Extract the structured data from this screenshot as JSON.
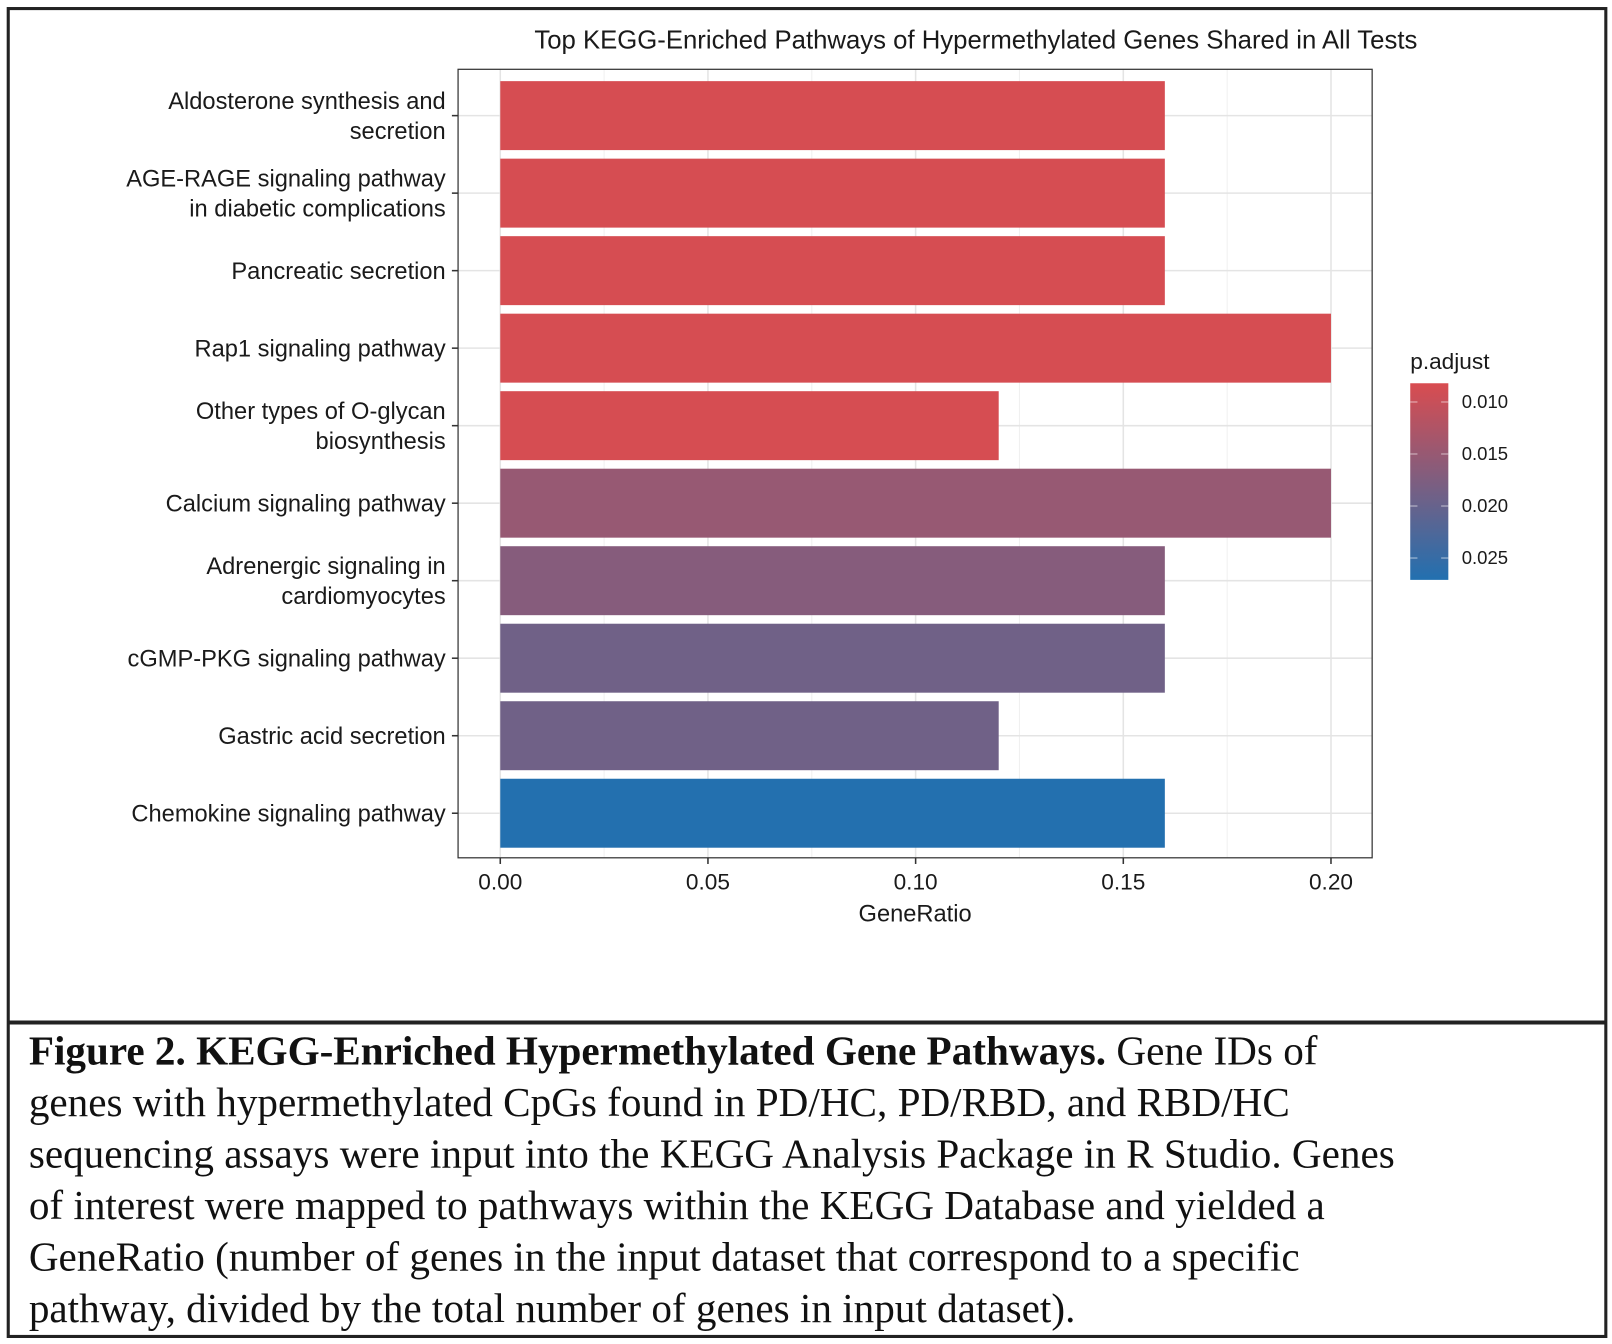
{
  "chart_data": {
    "type": "bar",
    "orientation": "horizontal",
    "title": "Top KEGG-Enriched Pathways of Hypermethylated Genes Shared in All Tests",
    "xlabel": "GeneRatio",
    "ylabel": "",
    "xlim": [
      0,
      0.21
    ],
    "xticks": [
      "0.00",
      "0.05",
      "0.10",
      "0.15",
      "0.20"
    ],
    "xtick_values": [
      0,
      0.05,
      0.1,
      0.15,
      0.2
    ],
    "grid": true,
    "categories": [
      [
        "Aldosterone synthesis and",
        "secretion"
      ],
      [
        "AGE-RAGE signaling pathway",
        "in diabetic complications"
      ],
      [
        "Pancreatic secretion"
      ],
      [
        "Rap1 signaling pathway"
      ],
      [
        "Other types of O-glycan",
        "biosynthesis"
      ],
      [
        "Calcium signaling pathway"
      ],
      [
        "Adrenergic signaling in",
        "cardiomyocytes"
      ],
      [
        "cGMP-PKG signaling pathway"
      ],
      [
        "Gastric acid secretion"
      ],
      [
        "Chemokine signaling pathway"
      ]
    ],
    "values": [
      0.16,
      0.16,
      0.16,
      0.2,
      0.12,
      0.2,
      0.16,
      0.16,
      0.12,
      0.16
    ],
    "p_adjust": [
      0.0085,
      0.0085,
      0.0085,
      0.0085,
      0.0085,
      0.015,
      0.0168,
      0.019,
      0.019,
      0.027
    ],
    "legend": {
      "title": "p.adjust",
      "placement": "right",
      "labels": [
        "0.010",
        "0.015",
        "0.020",
        "0.025"
      ],
      "label_values": [
        0.01,
        0.015,
        0.02,
        0.025
      ],
      "range": [
        0.0082,
        0.0271
      ],
      "low_color": "#d94c50",
      "high_color": "#2270b0"
    }
  },
  "caption": {
    "bold": "Figure 2. KEGG-Enriched Hypermethylated Gene Pathways.",
    "lines": [
      " Gene IDs of",
      "genes with hypermethylated CpGs found in PD/HC, PD/RBD, and RBD/HC",
      "sequencing assays were input into the KEGG Analysis Package in R Studio. Genes",
      "of interest were mapped to pathways within the KEGG Database and yielded a",
      "GeneRatio (number of genes in the input dataset that correspond to a specific",
      "pathway, divided by the total number of genes in input dataset)."
    ]
  }
}
